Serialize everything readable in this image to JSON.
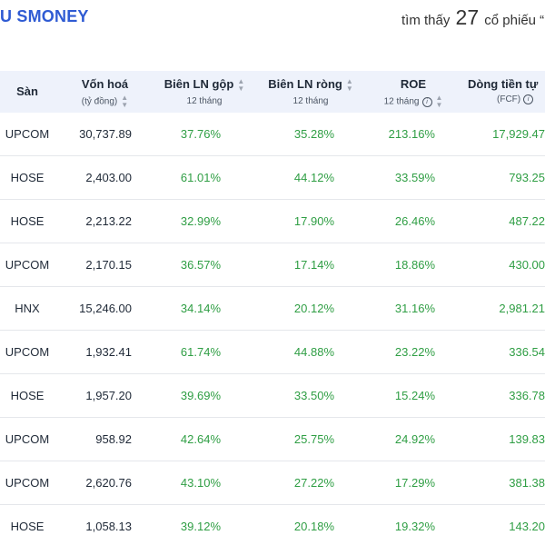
{
  "header": {
    "brand": "U SMONEY",
    "found_prefix": "tìm thấy",
    "found_count": "27",
    "found_suffix": "cổ phiếu “M"
  },
  "columns": {
    "exchange": {
      "title": "Sàn"
    },
    "cap": {
      "title": "Vốn hoá",
      "sub": "(tỷ đồng)",
      "sort_icon": "sort-icon"
    },
    "gross": {
      "title": "Biên LN gộp",
      "sub": "12 tháng",
      "sort_icon": "sort-icon"
    },
    "net": {
      "title": "Biên LN ròng",
      "sub": "12 tháng",
      "sort_icon": "sort-icon"
    },
    "roe": {
      "title": "ROE",
      "sub": "12 tháng",
      "info_icon": "info-icon",
      "sort_icon": "sort-icon"
    },
    "fcf": {
      "title": "Dòng tiền tự",
      "sub": "(FCF)",
      "info_icon": "info-icon"
    }
  },
  "rows": [
    {
      "exchange": "UPCOM",
      "cap": "30,737.89",
      "gross": "37.76%",
      "net": "35.28%",
      "roe": "213.16%",
      "fcf": "17,929.47"
    },
    {
      "exchange": "HOSE",
      "cap": "2,403.00",
      "gross": "61.01%",
      "net": "44.12%",
      "roe": "33.59%",
      "fcf": "793.25"
    },
    {
      "exchange": "HOSE",
      "cap": "2,213.22",
      "gross": "32.99%",
      "net": "17.90%",
      "roe": "26.46%",
      "fcf": "487.22"
    },
    {
      "exchange": "UPCOM",
      "cap": "2,170.15",
      "gross": "36.57%",
      "net": "17.14%",
      "roe": "18.86%",
      "fcf": "430.00"
    },
    {
      "exchange": "HNX",
      "cap": "15,246.00",
      "gross": "34.14%",
      "net": "20.12%",
      "roe": "31.16%",
      "fcf": "2,981.21"
    },
    {
      "exchange": "UPCOM",
      "cap": "1,932.41",
      "gross": "61.74%",
      "net": "44.88%",
      "roe": "23.22%",
      "fcf": "336.54"
    },
    {
      "exchange": "HOSE",
      "cap": "1,957.20",
      "gross": "39.69%",
      "net": "33.50%",
      "roe": "15.24%",
      "fcf": "336.78"
    },
    {
      "exchange": "UPCOM",
      "cap": "958.92",
      "gross": "42.64%",
      "net": "25.75%",
      "roe": "24.92%",
      "fcf": "139.83"
    },
    {
      "exchange": "UPCOM",
      "cap": "2,620.76",
      "gross": "43.10%",
      "net": "27.22%",
      "roe": "17.29%",
      "fcf": "381.38"
    },
    {
      "exchange": "HOSE",
      "cap": "1,058.13",
      "gross": "39.12%",
      "net": "20.18%",
      "roe": "19.32%",
      "fcf": "143.20"
    }
  ],
  "colors": {
    "brand": "#2f5bd3",
    "positive": "#2f9e44",
    "header_bg": "#eef2fb"
  }
}
